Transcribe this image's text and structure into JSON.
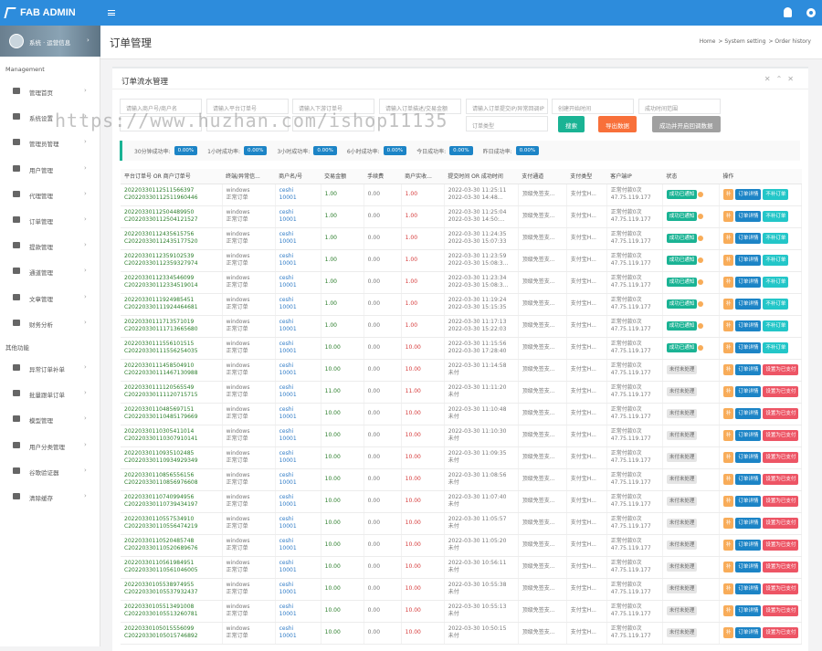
{
  "topbar": {
    "logo": "FAB ADMIN"
  },
  "sidebar": {
    "user": "系统 · 运营信息",
    "section1": "Management",
    "items1": [
      "管理首页",
      "系统设置",
      "管理员管理",
      "用户管理",
      "代理管理",
      "订单管理",
      "提款管理",
      "通道管理",
      "文章管理",
      "财务分析"
    ],
    "section2": "其他功能",
    "items2": [
      "异常订单补单",
      "批量跟单订单",
      "模型管理",
      "用户分类管理",
      "谷歌验证器",
      "清除缓存"
    ]
  },
  "watermark": "https://www.huzhan.com/ishop11135",
  "header": {
    "title": "订单管理",
    "breadcrumb": [
      "Home",
      "System setting",
      "Order history"
    ]
  },
  "panel": {
    "title": "订单流水管理",
    "filters": [
      "请输入商户号/商户名",
      "请输入平台订单号",
      "请输入下游订单号",
      "请输入订单描述/交易金额",
      "请输入订单提交IP/异常回调IP",
      "创建开始时间",
      "成功时间范围"
    ],
    "select": "订单类型",
    "buttons": [
      "搜索",
      "导出数据",
      "成功并开启回调数据"
    ]
  },
  "stats": [
    {
      "label": "30分钟成功率:",
      "value": "0.00%"
    },
    {
      "label": "1小时成功率:",
      "value": "0.00%"
    },
    {
      "label": "3小时成功率:",
      "value": "0.00%"
    },
    {
      "label": "6小时成功率:",
      "value": "0.00%"
    },
    {
      "label": "今日成功率:",
      "value": "0.00%"
    },
    {
      "label": "昨日成功率:",
      "value": "0.00%"
    }
  ],
  "table": {
    "columns": [
      "平台订单号 OR 商户订单号",
      "终端/异常信...",
      "商户名/号",
      "交易金额",
      "手续费",
      "商户实收...",
      "提交时间 OR 成功时间",
      "支付通道",
      "支付类型",
      "客户端IP",
      "状态",
      "操作"
    ],
    "rows": [
      [
        "20220330112511566397",
        "C20220330112511960446",
        "windows",
        "正常订单",
        "ceshi",
        "10001",
        "1.00",
        "0.00",
        "1.00",
        "2022-03-30 11:25:11",
        "2022-03-30 14:48...",
        "顶级免签支...",
        "支付宝H...",
        "正常付款0次",
        "47.75.119.177",
        "成功已通知",
        "补",
        "订单详情",
        "不补订单"
      ],
      [
        "20220330112504489950",
        "C20220330112504121527",
        "windows",
        "正常订单",
        "ceshi",
        "10001",
        "1.00",
        "0.00",
        "1.00",
        "2022-03-30 11:25:04",
        "2022-03-30 14:50:...",
        "顶级免签支...",
        "支付宝H...",
        "正常付款0次",
        "47.75.119.177",
        "成功已通知",
        "补",
        "订单详情",
        "不补订单"
      ],
      [
        "20220330112435615756",
        "C20220330112435177520",
        "windows",
        "正常订单",
        "ceshi",
        "10001",
        "1.00",
        "0.00",
        "1.00",
        "2022-03-30 11:24:35",
        "2022-03-30 15:07:33",
        "顶级免签支...",
        "支付宝H...",
        "正常付款0次",
        "47.75.119.177",
        "成功已通知",
        "补",
        "订单详情",
        "不补订单"
      ],
      [
        "20220330112359102539",
        "C20220330112359327974",
        "windows",
        "正常订单",
        "ceshi",
        "10001",
        "1.00",
        "0.00",
        "1.00",
        "2022-03-30 11:23:59",
        "2022-03-30 15:08:3...",
        "顶级免签支...",
        "支付宝H...",
        "正常付款0次",
        "47.75.119.177",
        "成功已通知",
        "补",
        "订单详情",
        "不补订单"
      ],
      [
        "20220330112334546099",
        "C20220330112334519014",
        "windows",
        "正常订单",
        "ceshi",
        "10001",
        "1.00",
        "0.00",
        "1.00",
        "2022-03-30 11:23:34",
        "2022-03-30 15:08:3...",
        "顶级免签支...",
        "支付宝H...",
        "正常付款0次",
        "47.75.119.177",
        "成功已通知",
        "补",
        "订单详情",
        "不补订单"
      ],
      [
        "20220330111924985451",
        "C20220330111924464681",
        "windows",
        "正常订单",
        "ceshi",
        "10001",
        "1.00",
        "0.00",
        "1.00",
        "2022-03-30 11:19:24",
        "2022-03-30 15:15:35",
        "顶级免签支...",
        "支付宝H...",
        "正常付款0次",
        "47.75.119.177",
        "成功已通知",
        "补",
        "订单详情",
        "不补订单"
      ],
      [
        "20220330111713571019",
        "C20220330111713665680",
        "windows",
        "正常订单",
        "ceshi",
        "10001",
        "1.00",
        "0.00",
        "1.00",
        "2022-03-30 11:17:13",
        "2022-03-30 15:22:03",
        "顶级免签支...",
        "支付宝H...",
        "正常付款0次",
        "47.75.119.177",
        "成功已通知",
        "补",
        "订单详情",
        "不补订单"
      ],
      [
        "20220330111556101515",
        "C20220330111556254035",
        "windows",
        "正常订单",
        "ceshi",
        "10001",
        "10.00",
        "0.00",
        "10.00",
        "2022-03-30 11:15:56",
        "2022-03-30 17:28:40",
        "顶级免签支...",
        "支付宝H...",
        "正常付款0次",
        "47.75.119.177",
        "成功已通知",
        "补",
        "订单详情",
        "不补订单"
      ],
      [
        "20220330111458504910",
        "C20220330111467130988",
        "windows",
        "正常订单",
        "ceshi",
        "10001",
        "10.00",
        "0.00",
        "10.00",
        "2022-03-30 11:14:58",
        "未付",
        "顶级免签支...",
        "支付宝H...",
        "正常付款0次",
        "47.75.119.177",
        "未付未处理",
        "补",
        "订单详情",
        "设置为已支付"
      ],
      [
        "20220330111120565549",
        "C20220330111120715715",
        "windows",
        "正常订单",
        "ceshi",
        "10001",
        "11.00",
        "0.00",
        "11.00",
        "2022-03-30 11:11:20",
        "未付",
        "顶级免签支...",
        "支付宝H...",
        "正常付款0次",
        "47.75.119.177",
        "未付未处理",
        "补",
        "订单详情",
        "设置为已支付"
      ],
      [
        "20220330110485697151",
        "C20220330110485179669",
        "windows",
        "正常订单",
        "ceshi",
        "10001",
        "10.00",
        "0.00",
        "10.00",
        "2022-03-30 11:10:48",
        "未付",
        "顶级免签支...",
        "支付宝H...",
        "正常付款0次",
        "47.75.119.177",
        "未付未处理",
        "补",
        "订单详情",
        "设置为已支付"
      ],
      [
        "20220330110305411014",
        "C20220330110307910141",
        "windows",
        "正常订单",
        "ceshi",
        "10001",
        "10.00",
        "0.00",
        "10.00",
        "2022-03-30 11:10:30",
        "未付",
        "顶级免签支...",
        "支付宝H...",
        "正常付款0次",
        "47.75.119.177",
        "未付未处理",
        "补",
        "订单详情",
        "设置为已支付"
      ],
      [
        "20220330110935102485",
        "C20220330110934929349",
        "windows",
        "正常订单",
        "ceshi",
        "10001",
        "10.00",
        "0.00",
        "10.00",
        "2022-03-30 11:09:35",
        "未付",
        "顶级免签支...",
        "支付宝H...",
        "正常付款0次",
        "47.75.119.177",
        "未付未处理",
        "补",
        "订单详情",
        "设置为已支付"
      ],
      [
        "20220330110856556156",
        "C20220330110856976608",
        "windows",
        "正常订单",
        "ceshi",
        "10001",
        "10.00",
        "0.00",
        "10.00",
        "2022-03-30 11:08:56",
        "未付",
        "顶级免签支...",
        "支付宝H...",
        "正常付款0次",
        "47.75.119.177",
        "未付未处理",
        "补",
        "订单详情",
        "设置为已支付"
      ],
      [
        "20220330110740994956",
        "C20220330110739434197",
        "windows",
        "正常订单",
        "ceshi",
        "10001",
        "10.00",
        "0.00",
        "10.00",
        "2022-03-30 11:07:40",
        "未付",
        "顶级免签支...",
        "支付宝H...",
        "正常付款0次",
        "47.75.119.177",
        "未付未处理",
        "补",
        "订单详情",
        "设置为已支付"
      ],
      [
        "20220330110557534910",
        "C20220330110556474219",
        "windows",
        "正常订单",
        "ceshi",
        "10001",
        "10.00",
        "0.00",
        "10.00",
        "2022-03-30 11:05:57",
        "未付",
        "顶级免签支...",
        "支付宝H...",
        "正常付款0次",
        "47.75.119.177",
        "未付未处理",
        "补",
        "订单详情",
        "设置为已支付"
      ],
      [
        "20220330110520485748",
        "C20220330110520689676",
        "windows",
        "正常订单",
        "ceshi",
        "10001",
        "10.00",
        "0.00",
        "10.00",
        "2022-03-30 11:05:20",
        "未付",
        "顶级免签支...",
        "支付宝H...",
        "正常付款0次",
        "47.75.119.177",
        "未付未处理",
        "补",
        "订单详情",
        "设置为已支付"
      ],
      [
        "20220330110561984951",
        "C20220330110561046005",
        "windows",
        "正常订单",
        "ceshi",
        "10001",
        "10.00",
        "0.00",
        "10.00",
        "2022-03-30 10:56:11",
        "未付",
        "顶级免签支...",
        "支付宝H...",
        "正常付款0次",
        "47.75.119.177",
        "未付未处理",
        "补",
        "订单详情",
        "设置为已支付"
      ],
      [
        "20220330105538974955",
        "C20220330105537932437",
        "windows",
        "正常订单",
        "ceshi",
        "10001",
        "10.00",
        "0.00",
        "10.00",
        "2022-03-30 10:55:38",
        "未付",
        "顶级免签支...",
        "支付宝H...",
        "正常付款0次",
        "47.75.119.177",
        "未付未处理",
        "补",
        "订单详情",
        "设置为已支付"
      ],
      [
        "20220330105513491008",
        "C20220330105513260781",
        "windows",
        "正常订单",
        "ceshi",
        "10001",
        "10.00",
        "0.00",
        "10.00",
        "2022-03-30 10:55:13",
        "未付",
        "顶级免签支...",
        "支付宝H...",
        "正常付款0次",
        "47.75.119.177",
        "未付未处理",
        "补",
        "订单详情",
        "设置为已支付"
      ],
      [
        "20220330105015556099",
        "C20220330105015746892",
        "windows",
        "正常订单",
        "ceshi",
        "10001",
        "10.00",
        "0.00",
        "10.00",
        "2022-03-30 10:50:15",
        "未付",
        "顶级免签支...",
        "支付宝H...",
        "正常付款0次",
        "47.75.119.177",
        "未付未处理",
        "补",
        "订单详情",
        "设置为已支付"
      ]
    ]
  }
}
